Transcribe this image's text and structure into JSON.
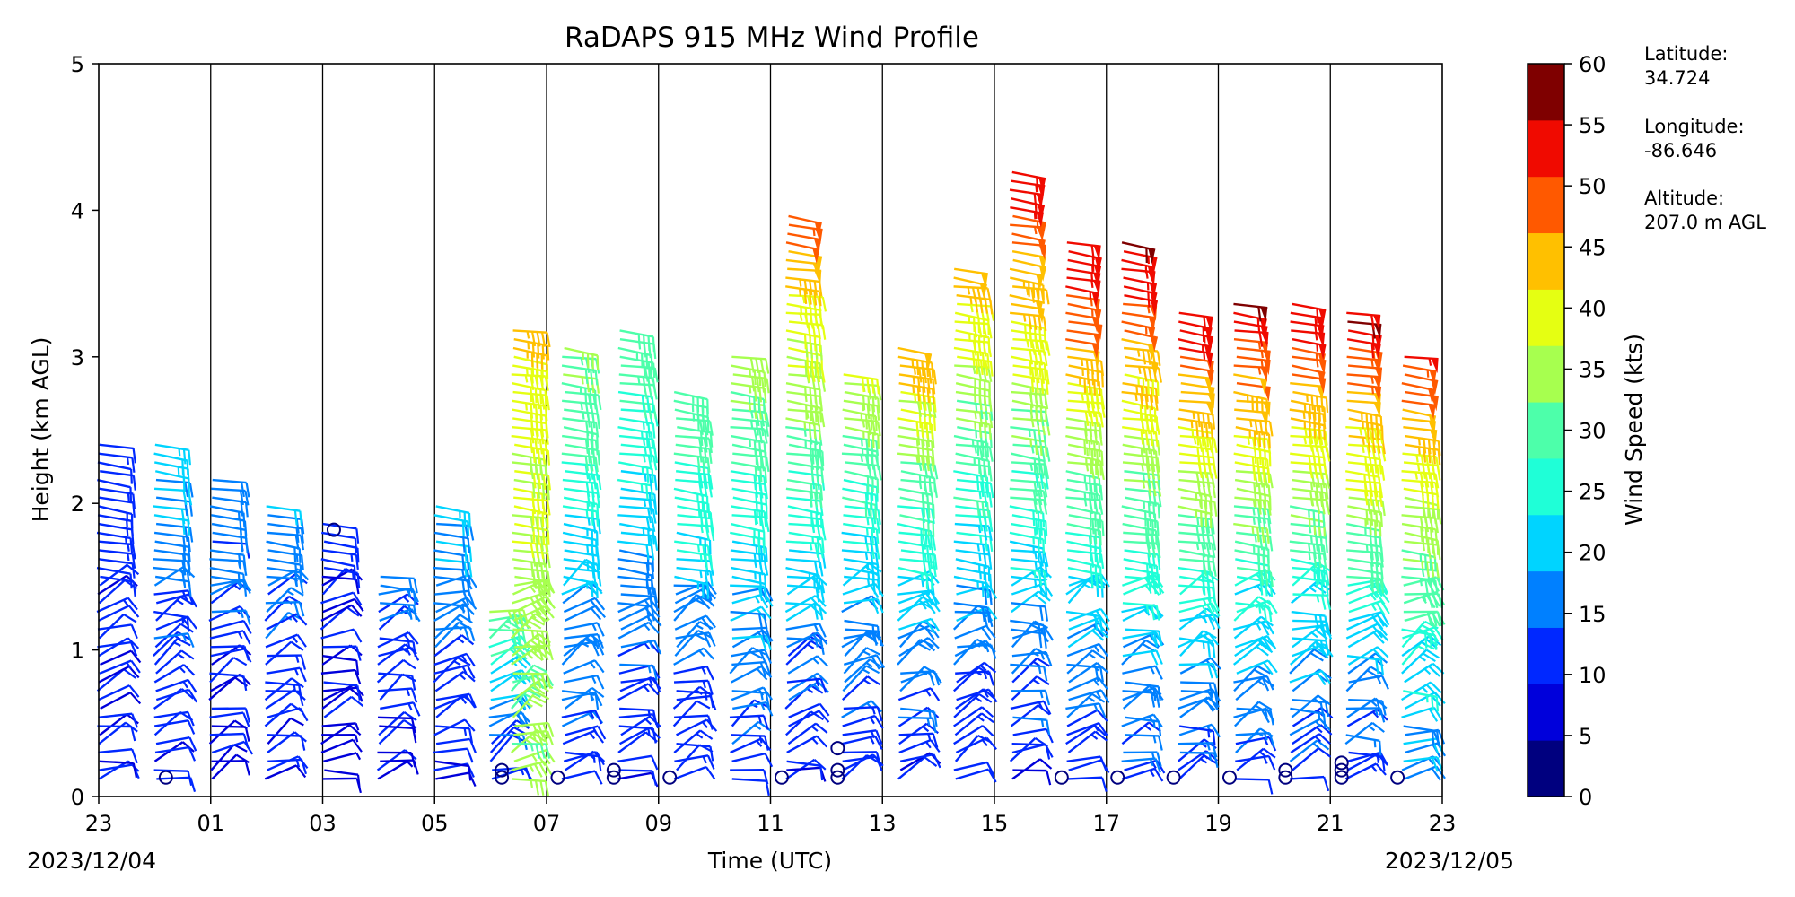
{
  "chart_data": {
    "type": "scatter",
    "title": "RaDAPS 915 MHz Wind Profile",
    "xlabel": "Time (UTC)",
    "ylabel": "Height (km AGL)",
    "xlim": [
      23,
      47
    ],
    "ylim": [
      0,
      5
    ],
    "x_tick_labels": [
      "23",
      "01",
      "03",
      "05",
      "07",
      "09",
      "11",
      "13",
      "15",
      "17",
      "19",
      "21",
      "23"
    ],
    "y_tick_labels": [
      "0",
      "1",
      "2",
      "3",
      "4",
      "5"
    ],
    "start_date_label": "2023/12/04",
    "end_date_label": "2023/12/05",
    "grid": "vertical lines at each labeled hour",
    "colorbar": {
      "label": "Wind Speed (kts)",
      "ticks": [
        "0",
        "5",
        "10",
        "15",
        "20",
        "25",
        "30",
        "35",
        "40",
        "45",
        "50",
        "55",
        "60"
      ],
      "colors": [
        "#00007f",
        "#0000db",
        "#0028ff",
        "#0080ff",
        "#00d4ff",
        "#1fffd7",
        "#4dffaa",
        "#a7ff4f",
        "#e5ff12",
        "#ffc000",
        "#ff5900",
        "#f00a00",
        "#7f0000"
      ]
    },
    "station_info": {
      "lat_label": "Latitude:",
      "lat_value": "34.724",
      "lon_label": "Longitude:",
      "lon_value": "-86.646",
      "alt_label": "Altitude:",
      "alt_value": "207.0 m AGL"
    },
    "profiles": [
      {
        "time": 23.0,
        "top_km": 2.4,
        "speed_low": 10,
        "speed_high": 13
      },
      {
        "time": 24.0,
        "top_km": 2.4,
        "speed_low": 10,
        "speed_high": 22
      },
      {
        "time": 25.0,
        "top_km": 2.2,
        "speed_low": 8,
        "speed_high": 20
      },
      {
        "time": 26.0,
        "top_km": 2.0,
        "speed_low": 10,
        "speed_high": 20
      },
      {
        "time": 27.0,
        "top_km": 1.9,
        "speed_low": 8,
        "speed_high": 12
      },
      {
        "time": 28.0,
        "top_km": 1.5,
        "speed_low": 8,
        "speed_high": 18
      },
      {
        "time": 29.0,
        "top_km": 2.0,
        "speed_low": 10,
        "speed_high": 22
      },
      {
        "time": 30.0,
        "top_km": 1.3,
        "speed_low": 10,
        "speed_high": 38
      },
      {
        "time": 30.4,
        "top_km": 3.2,
        "speed_low": 35,
        "speed_high": 44
      },
      {
        "time": 31.3,
        "top_km": 3.1,
        "speed_low": 12,
        "speed_high": 36
      },
      {
        "time": 32.3,
        "top_km": 3.2,
        "speed_low": 10,
        "speed_high": 34
      },
      {
        "time": 33.3,
        "top_km": 2.8,
        "speed_low": 10,
        "speed_high": 36
      },
      {
        "time": 34.3,
        "top_km": 3.0,
        "speed_low": 12,
        "speed_high": 38
      },
      {
        "time": 35.3,
        "top_km": 4.0,
        "speed_low": 10,
        "speed_high": 53
      },
      {
        "time": 36.3,
        "top_km": 2.9,
        "speed_low": 10,
        "speed_high": 40
      },
      {
        "time": 37.3,
        "top_km": 3.1,
        "speed_low": 10,
        "speed_high": 48
      },
      {
        "time": 38.3,
        "top_km": 3.6,
        "speed_low": 10,
        "speed_high": 48
      },
      {
        "time": 39.3,
        "top_km": 4.3,
        "speed_low": 10,
        "speed_high": 60
      },
      {
        "time": 40.3,
        "top_km": 3.8,
        "speed_low": 10,
        "speed_high": 60
      },
      {
        "time": 41.3,
        "top_km": 3.8,
        "speed_low": 12,
        "speed_high": 60
      },
      {
        "time": 42.3,
        "top_km": 3.3,
        "speed_low": 12,
        "speed_high": 58
      },
      {
        "time": 43.3,
        "top_km": 3.4,
        "speed_low": 12,
        "speed_high": 60
      },
      {
        "time": 44.3,
        "top_km": 3.4,
        "speed_low": 12,
        "speed_high": 60
      },
      {
        "time": 45.3,
        "top_km": 3.3,
        "speed_low": 12,
        "speed_high": 60
      },
      {
        "time": 46.3,
        "top_km": 3.0,
        "speed_low": 18,
        "speed_high": 55
      }
    ],
    "calm_markers": [
      {
        "time": 24.2,
        "h": 0.13
      },
      {
        "time": 27.2,
        "h": 1.82
      },
      {
        "time": 30.2,
        "h": 0.13
      },
      {
        "time": 30.2,
        "h": 0.18
      },
      {
        "time": 31.2,
        "h": 0.13
      },
      {
        "time": 32.2,
        "h": 0.13
      },
      {
        "time": 32.2,
        "h": 0.18
      },
      {
        "time": 33.2,
        "h": 0.13
      },
      {
        "time": 35.2,
        "h": 0.13
      },
      {
        "time": 36.2,
        "h": 0.13
      },
      {
        "time": 36.2,
        "h": 0.18
      },
      {
        "time": 36.2,
        "h": 0.33
      },
      {
        "time": 40.2,
        "h": 0.13
      },
      {
        "time": 41.2,
        "h": 0.13
      },
      {
        "time": 42.2,
        "h": 0.13
      },
      {
        "time": 43.2,
        "h": 0.13
      },
      {
        "time": 44.2,
        "h": 0.13
      },
      {
        "time": 44.2,
        "h": 0.18
      },
      {
        "time": 45.2,
        "h": 0.13
      },
      {
        "time": 45.2,
        "h": 0.18
      },
      {
        "time": 45.2,
        "h": 0.23
      },
      {
        "time": 46.2,
        "h": 0.13
      }
    ]
  }
}
